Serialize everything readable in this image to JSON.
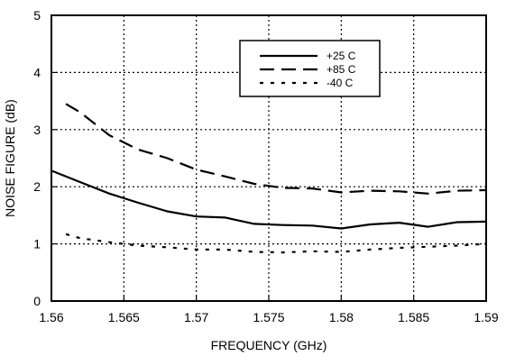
{
  "chart_data": {
    "type": "line",
    "title": "",
    "xlabel": "FREQUENCY (GHz)",
    "ylabel": "NOISE FIGURE (dB)",
    "xlim": [
      1.56,
      1.59
    ],
    "ylim": [
      0,
      5
    ],
    "x_ticks": [
      "1.56",
      "1.565",
      "1.57",
      "1.575",
      "1.58",
      "1.585",
      "1.59"
    ],
    "y_ticks": [
      "0",
      "1",
      "2",
      "3",
      "4",
      "5"
    ],
    "grid": true,
    "legend_position": "top-right",
    "series": [
      {
        "name": "+25 C",
        "style": "solid",
        "x": [
          1.56,
          1.562,
          1.564,
          1.566,
          1.568,
          1.57,
          1.572,
          1.574,
          1.576,
          1.578,
          1.58,
          1.582,
          1.584,
          1.586,
          1.588,
          1.59
        ],
        "y": [
          2.28,
          2.08,
          1.88,
          1.72,
          1.57,
          1.48,
          1.46,
          1.35,
          1.33,
          1.32,
          1.27,
          1.34,
          1.37,
          1.3,
          1.38,
          1.39
        ]
      },
      {
        "name": "+85 C",
        "style": "dashed",
        "x": [
          1.561,
          1.562,
          1.564,
          1.566,
          1.568,
          1.57,
          1.572,
          1.574,
          1.576,
          1.578,
          1.58,
          1.582,
          1.584,
          1.586,
          1.588,
          1.59
        ],
        "y": [
          3.45,
          3.3,
          2.9,
          2.65,
          2.5,
          2.3,
          2.18,
          2.05,
          1.98,
          1.97,
          1.9,
          1.93,
          1.92,
          1.88,
          1.93,
          1.94
        ]
      },
      {
        "name": "-40 C",
        "style": "dotted",
        "x": [
          1.561,
          1.562,
          1.564,
          1.566,
          1.568,
          1.57,
          1.572,
          1.574,
          1.576,
          1.578,
          1.58,
          1.582,
          1.584,
          1.586,
          1.588,
          1.59
        ],
        "y": [
          1.17,
          1.1,
          1.03,
          0.97,
          0.94,
          0.9,
          0.9,
          0.86,
          0.85,
          0.87,
          0.86,
          0.9,
          0.93,
          0.95,
          0.97,
          1.0
        ]
      }
    ]
  }
}
